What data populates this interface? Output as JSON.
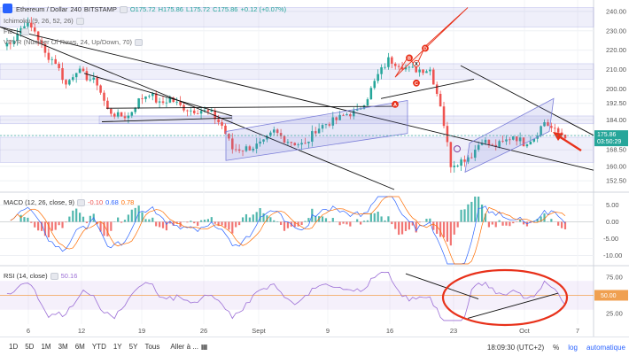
{
  "header": {
    "pair": "Ethereum / Dollar",
    "interval": "240",
    "exchange": "BITSTAMP",
    "ohlc": [
      "O175.72",
      "H175.86",
      "L175.72",
      "C175.86",
      "+0.12 (+0.07%)"
    ]
  },
  "indicators": {
    "ichimoku": "Ichimoku (9, 26, 52, 26)",
    "fib": "Fib...",
    "vpvr": "VPVR (Number Of Rows, 24, Up/Down, 70)"
  },
  "price_tags": {
    "last": "175.86",
    "countdown": "03:50:29"
  },
  "macd_label": {
    "name": "MACD (12, 26, close, 9)",
    "v1": "-0.10",
    "v2": "0.68",
    "v3": "0.78"
  },
  "rsi_label": {
    "name": "RSI (14, close)",
    "value": "50.16"
  },
  "rsi_tag": "50.00",
  "bottom": {
    "timeframes": [
      "1D",
      "5D",
      "1M",
      "3M",
      "6M",
      "YTD",
      "1Y",
      "5Y",
      "Tous"
    ],
    "goto": "Aller à ...",
    "clock": "18:09:30 (UTC+2)",
    "percent": "%",
    "log": "log",
    "auto": "automatique"
  },
  "colors": {
    "up": "#26a69a",
    "down": "#ef5350",
    "rsi": "#9c6fd6",
    "band": "#7c7fd9",
    "annotation": "#e8311a"
  },
  "chart_data": [
    {
      "type": "candlestick",
      "ylim": [
        148,
        245
      ],
      "y_ticks": [
        152.5,
        160.0,
        168.5,
        176.0,
        184.0,
        192.5,
        200.0,
        210.0,
        220.0,
        230.0,
        240.0
      ],
      "y_tick_labels": [
        "152.50",
        "160.00",
        "168.50",
        "176.00",
        "184.00",
        "192.50",
        "200.00",
        "210.00",
        "220.00",
        "230.00",
        "240.00"
      ],
      "x_labels": [
        "6",
        "12",
        "19",
        "26",
        "Sept",
        "9",
        "16",
        "23",
        "Oct",
        "7"
      ],
      "close_path": [
        [
          0,
          222
        ],
        [
          3,
          226
        ],
        [
          6,
          234
        ],
        [
          9,
          230
        ],
        [
          12,
          218
        ],
        [
          15,
          214
        ],
        [
          18,
          202
        ],
        [
          21,
          210
        ],
        [
          24,
          206
        ],
        [
          27,
          203
        ],
        [
          30,
          189
        ],
        [
          33,
          186
        ],
        [
          36,
          186
        ],
        [
          39,
          194
        ],
        [
          42,
          198
        ],
        [
          45,
          192
        ],
        [
          48,
          195
        ],
        [
          51,
          191
        ],
        [
          54,
          189
        ],
        [
          57,
          189
        ],
        [
          60,
          187
        ],
        [
          63,
          181
        ],
        [
          66,
          169
        ],
        [
          69,
          169
        ],
        [
          72,
          170
        ],
        [
          75,
          172
        ],
        [
          78,
          178
        ],
        [
          81,
          174
        ],
        [
          84,
          172
        ],
        [
          87,
          171
        ],
        [
          90,
          179
        ],
        [
          93,
          182
        ],
        [
          96,
          184
        ],
        [
          99,
          187
        ],
        [
          102,
          188
        ],
        [
          105,
          196
        ],
        [
          108,
          207
        ],
        [
          111,
          215
        ],
        [
          114,
          213
        ],
        [
          117,
          210
        ],
        [
          120,
          210
        ],
        [
          123,
          210
        ],
        [
          126,
          192
        ],
        [
          129,
          161
        ],
        [
          132,
          163
        ],
        [
          135,
          166
        ],
        [
          138,
          174
        ],
        [
          141,
          170
        ],
        [
          144,
          172
        ],
        [
          147,
          176
        ],
        [
          150,
          172
        ],
        [
          153,
          175
        ],
        [
          156,
          183
        ],
        [
          159,
          178
        ],
        [
          162,
          176
        ]
      ],
      "annotation_letters": [
        "X",
        "A",
        "B",
        "C",
        "D"
      ]
    },
    {
      "type": "macd",
      "name": "MACD (12, 26, close, 9)",
      "ylim": [
        -12.5,
        7.5
      ],
      "y_ticks": [
        5.0,
        0.0,
        -5.0,
        -10.0
      ],
      "y_tick_labels": [
        "5.00",
        "0.00",
        "-5.00",
        "-10.00"
      ]
    },
    {
      "type": "rsi",
      "name": "RSI (14, close)",
      "ylim": [
        10,
        85
      ],
      "y_ticks": [
        75.0,
        50.0,
        25.0
      ],
      "y_tick_labels": [
        "75.00",
        "50.00",
        "25.00"
      ]
    }
  ]
}
